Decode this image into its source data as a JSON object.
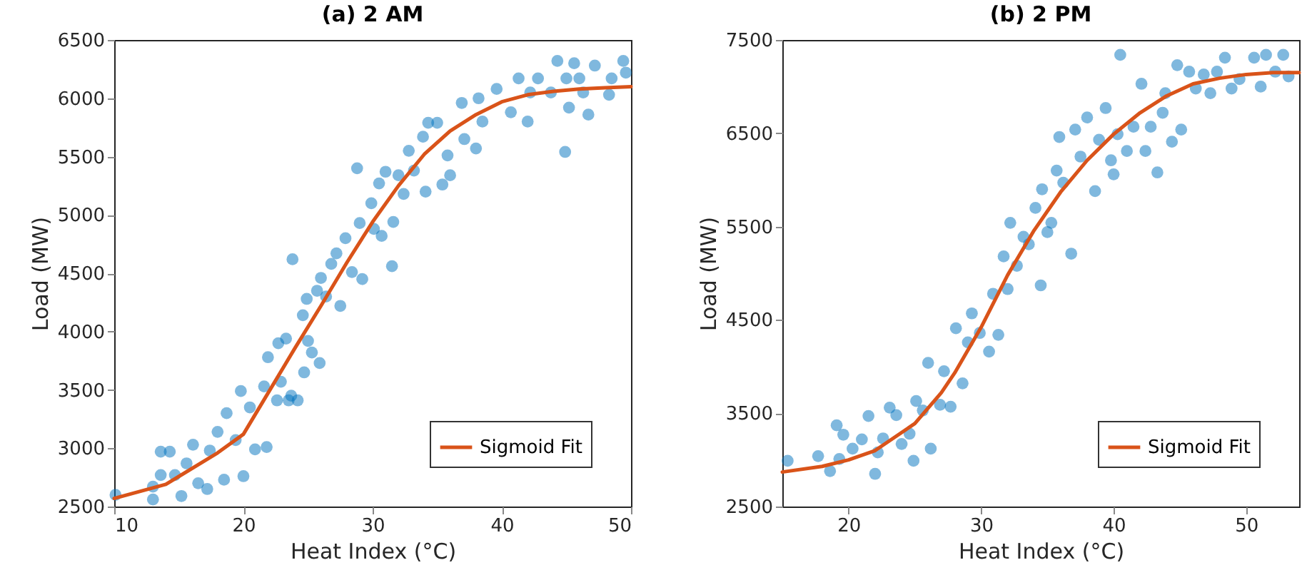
{
  "chart_data": [
    {
      "type": "scatter",
      "title": "(a) 2 AM",
      "xlabel": "Heat Index (°C)",
      "ylabel": "Load (MW)",
      "xlim": [
        10,
        50
      ],
      "ylim": [
        2500,
        6500
      ],
      "xticks": [
        10,
        20,
        30,
        40,
        50
      ],
      "yticks": [
        2500,
        3000,
        3500,
        4000,
        4500,
        5000,
        5500,
        6000,
        6500
      ],
      "legend": "bottom right",
      "series": [
        {
          "marker": "circle",
          "color": "#0072bd",
          "x": [
            10.1,
            13.0,
            13.0,
            13.6,
            14.3,
            13.6,
            14.7,
            15.2,
            15.6,
            16.1,
            16.5,
            17.4,
            17.2,
            18.0,
            18.7,
            18.5,
            19.4,
            19.8,
            20.0,
            20.5,
            20.9,
            21.6,
            21.8,
            21.9,
            22.7,
            22.6,
            22.9,
            23.3,
            23.5,
            23.7,
            23.8,
            24.2,
            24.7,
            24.6,
            24.9,
            25.0,
            25.3,
            25.7,
            26.0,
            25.9,
            26.4,
            26.8,
            27.2,
            27.5,
            27.9,
            28.4,
            29.0,
            28.8,
            29.2,
            29.9,
            30.1,
            30.5,
            30.7,
            31.0,
            31.5,
            31.6,
            32.0,
            32.4,
            32.8,
            33.2,
            33.9,
            34.1,
            34.3,
            35.0,
            35.4,
            35.8,
            36.0,
            36.9,
            37.1,
            38.0,
            38.2,
            38.5,
            39.6,
            40.7,
            41.3,
            42.0,
            42.2,
            42.8,
            43.8,
            44.3,
            44.9,
            45.0,
            45.2,
            45.6,
            46.0,
            46.3,
            46.7,
            47.2,
            48.3,
            48.5,
            49.4,
            49.6
          ],
          "values": [
            2600,
            2560,
            2670,
            2970,
            2970,
            2770,
            2770,
            2590,
            2870,
            3030,
            2700,
            2980,
            2650,
            3140,
            3300,
            2730,
            3070,
            3490,
            2760,
            3350,
            2990,
            3530,
            3010,
            3780,
            3900,
            3410,
            3570,
            3940,
            3410,
            3450,
            4620,
            3410,
            3650,
            4140,
            4280,
            3920,
            3820,
            4350,
            4460,
            3730,
            4300,
            4580,
            4670,
            4220,
            4800,
            4510,
            4930,
            5400,
            4450,
            5100,
            4880,
            5270,
            4820,
            5370,
            4560,
            4940,
            5340,
            5180,
            5550,
            5380,
            5670,
            5200,
            5790,
            5790,
            5260,
            5510,
            5340,
            5960,
            5650,
            5570,
            6000,
            5800,
            6080,
            5880,
            6170,
            5800,
            6050,
            6170,
            6050,
            6320,
            5540,
            6170,
            5920,
            6300,
            6170,
            6050,
            5860,
            6280,
            6030,
            6170,
            6320,
            6220
          ]
        },
        {
          "type": "line",
          "name": "Sigmoid Fit",
          "color": "#d95319",
          "x": [
            10,
            14,
            18,
            20,
            22,
            24,
            26,
            28,
            30,
            32,
            34,
            36,
            38,
            40,
            42,
            44,
            46,
            48,
            50
          ],
          "values": [
            2570,
            2690,
            2960,
            3120,
            3490,
            3860,
            4220,
            4590,
            4940,
            5250,
            5520,
            5720,
            5860,
            5970,
            6030,
            6060,
            6080,
            6090,
            6100
          ]
        }
      ]
    },
    {
      "type": "scatter",
      "title": "(b) 2 PM",
      "xlabel": "Heat Index (°C)",
      "ylabel": "Load (MW)",
      "xlim": [
        15,
        54
      ],
      "ylim": [
        2500,
        7500
      ],
      "xticks": [
        20,
        30,
        40,
        50
      ],
      "yticks": [
        2500,
        3500,
        4500,
        5500,
        6500,
        7500
      ],
      "legend": "bottom right",
      "series": [
        {
          "marker": "circle",
          "color": "#0072bd",
          "x": [
            15.4,
            17.7,
            18.6,
            19.1,
            19.6,
            19.3,
            20.3,
            21.0,
            21.5,
            22.0,
            22.2,
            22.6,
            23.1,
            23.6,
            24.0,
            24.6,
            24.9,
            25.1,
            25.6,
            26.0,
            26.2,
            26.9,
            27.2,
            27.7,
            28.1,
            28.6,
            29.0,
            29.3,
            29.9,
            30.6,
            30.9,
            31.3,
            31.7,
            32.0,
            32.2,
            32.7,
            33.2,
            33.6,
            34.1,
            34.5,
            34.6,
            35.0,
            35.3,
            35.7,
            35.9,
            36.2,
            36.8,
            37.1,
            37.5,
            38.0,
            38.6,
            38.9,
            39.4,
            39.8,
            40.0,
            40.3,
            41.0,
            40.5,
            41.5,
            42.1,
            42.4,
            42.8,
            43.3,
            43.7,
            43.9,
            44.4,
            44.8,
            45.1,
            45.7,
            46.2,
            46.8,
            47.3,
            47.8,
            48.4,
            48.9,
            49.5,
            50.6,
            51.1,
            51.5,
            52.2,
            52.8,
            53.2
          ],
          "values": [
            2990,
            3040,
            2880,
            3370,
            3270,
            3010,
            3120,
            3220,
            3470,
            2850,
            3080,
            3230,
            3560,
            3480,
            3170,
            3280,
            2990,
            3630,
            3530,
            4040,
            3120,
            3590,
            3950,
            3570,
            4410,
            3820,
            4260,
            4570,
            4360,
            4160,
            4780,
            4340,
            5180,
            4830,
            5540,
            5080,
            5390,
            5310,
            5700,
            4870,
            5900,
            5440,
            5540,
            6100,
            6460,
            5970,
            5210,
            6540,
            6250,
            6670,
            5880,
            6430,
            6770,
            6210,
            6060,
            6490,
            6310,
            7340,
            6570,
            7030,
            6310,
            6570,
            6080,
            6720,
            6930,
            6410,
            7230,
            6540,
            7160,
            6980,
            7130,
            6930,
            7160,
            7310,
            6980,
            7080,
            7310,
            7000,
            7340,
            7160,
            7340,
            7110
          ]
        },
        {
          "type": "line",
          "name": "Sigmoid Fit",
          "color": "#d95319",
          "x": [
            15,
            18,
            20,
            22,
            25,
            27,
            28,
            30,
            32,
            34,
            36,
            38,
            40,
            42,
            44,
            46,
            48,
            50,
            52,
            54
          ],
          "values": [
            2870,
            2930,
            3000,
            3100,
            3390,
            3720,
            3930,
            4420,
            4980,
            5460,
            5870,
            6210,
            6490,
            6720,
            6900,
            7030,
            7090,
            7130,
            7150,
            7150
          ]
        }
      ]
    }
  ]
}
